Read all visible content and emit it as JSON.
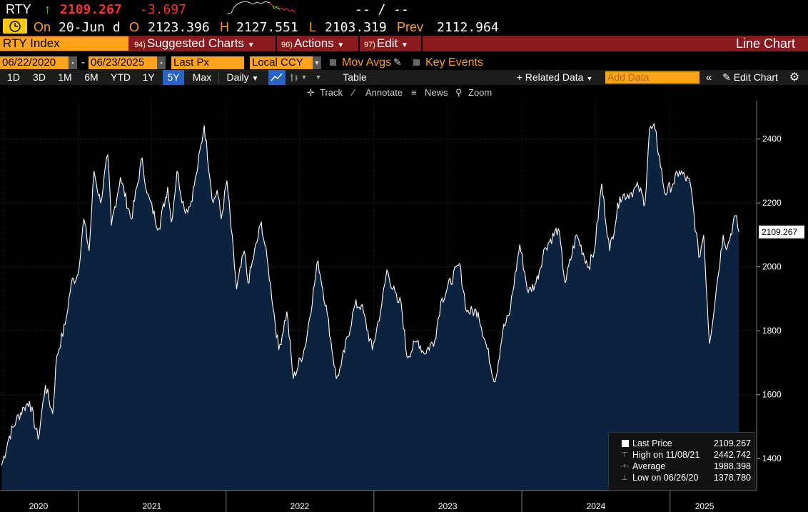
{
  "header": {
    "ticker": "RTY",
    "last": "2109.267",
    "change": "-3.697",
    "quote_placeholder": "-- / --",
    "on_label": "On",
    "date": "20-Jun d",
    "open_label": "O",
    "open": "2123.396",
    "high_label": "H",
    "high": "2127.551",
    "low_label": "L",
    "low": "2103.319",
    "prev_label": "Prev",
    "prev": "2112.964"
  },
  "menubar": {
    "security": "RTY Index",
    "suggested_num": "94)",
    "suggested": "Suggested Charts",
    "actions_num": "96)",
    "actions": "Actions",
    "edit_num": "97)",
    "edit": "Edit",
    "chart_type": "Line Chart"
  },
  "controls": {
    "start_date": "06/22/2020",
    "dash": "-",
    "end_date": "06/23/2025",
    "field": "Last Px",
    "currency": "Local CCY",
    "mov_avgs": "Mov Avgs",
    "key_events": "Key Events"
  },
  "toolbar": {
    "periods": [
      "1D",
      "3D",
      "1M",
      "6M",
      "YTD",
      "1Y",
      "5Y",
      "Max"
    ],
    "selected_period": "5Y",
    "frequency": "Daily",
    "table": "Table",
    "related": "+ Related Data",
    "add_data_placeholder": "Add Data",
    "edit_chart": "Edit Chart"
  },
  "tools": {
    "track": "Track",
    "annotate": "Annotate",
    "news": "News",
    "zoom": "Zoom"
  },
  "legend": {
    "last_label": "Last Price",
    "last_value": "2109.267",
    "high_label": "High on 11/08/21",
    "high_value": "2442.742",
    "avg_label": "Average",
    "avg_value": "1988.398",
    "low_label": "Low on 06/26/20",
    "low_value": "1378.780"
  },
  "colors": {
    "accent": "#ffa31a",
    "menubar": "#8b1a1f",
    "area_fill": "#0c2340",
    "line": "#ffffff",
    "up": "#2ee62e",
    "down": "#ff2e2e"
  },
  "chart_data": {
    "type": "area",
    "ylim": [
      1300,
      2520
    ],
    "y_ticks": [
      1400,
      1600,
      1800,
      2000,
      2200,
      2400
    ],
    "x_tick_labels": [
      "2020",
      "2021",
      "2022",
      "2023",
      "2024",
      "2025"
    ],
    "x_range": [
      "2020-06-22",
      "2025-06-23"
    ],
    "last_value_label": "2109.267",
    "grid": true,
    "series": [
      {
        "points": [
          [
            "2020-06-26",
            1378.78
          ],
          [
            "2020-07-15",
            1470
          ],
          [
            "2020-08-01",
            1520
          ],
          [
            "2020-08-20",
            1560
          ],
          [
            "2020-09-03",
            1580
          ],
          [
            "2020-09-24",
            1460
          ],
          [
            "2020-10-12",
            1630
          ],
          [
            "2020-10-30",
            1540
          ],
          [
            "2020-11-09",
            1720
          ],
          [
            "2020-11-30",
            1820
          ],
          [
            "2020-12-15",
            1950
          ],
          [
            "2020-12-31",
            1975
          ],
          [
            "2021-01-15",
            2150
          ],
          [
            "2021-01-28",
            2050
          ],
          [
            "2021-02-09",
            2300
          ],
          [
            "2021-02-25",
            2200
          ],
          [
            "2021-03-15",
            2350
          ],
          [
            "2021-03-24",
            2130
          ],
          [
            "2021-04-15",
            2280
          ],
          [
            "2021-05-12",
            2150
          ],
          [
            "2021-06-08",
            2340
          ],
          [
            "2021-06-20",
            2230
          ],
          [
            "2021-07-19",
            2120
          ],
          [
            "2021-08-10",
            2250
          ],
          [
            "2021-08-19",
            2140
          ],
          [
            "2021-09-02",
            2300
          ],
          [
            "2021-09-20",
            2180
          ],
          [
            "2021-10-04",
            2190
          ],
          [
            "2021-10-20",
            2290
          ],
          [
            "2021-11-08",
            2442.74
          ],
          [
            "2021-11-30",
            2200
          ],
          [
            "2021-12-10",
            2240
          ],
          [
            "2021-12-20",
            2150
          ],
          [
            "2022-01-03",
            2270
          ],
          [
            "2022-01-27",
            1930
          ],
          [
            "2022-02-15",
            2050
          ],
          [
            "2022-02-24",
            1950
          ],
          [
            "2022-03-29",
            2140
          ],
          [
            "2022-04-15",
            2000
          ],
          [
            "2022-05-11",
            1740
          ],
          [
            "2022-05-31",
            1860
          ],
          [
            "2022-06-16",
            1650
          ],
          [
            "2022-07-15",
            1750
          ],
          [
            "2022-08-16",
            2020
          ],
          [
            "2022-09-08",
            1850
          ],
          [
            "2022-09-30",
            1650
          ],
          [
            "2022-10-12",
            1690
          ],
          [
            "2022-11-15",
            1880
          ],
          [
            "2022-12-01",
            1880
          ],
          [
            "2022-12-28",
            1740
          ],
          [
            "2023-01-20",
            1880
          ],
          [
            "2023-02-02",
            1990
          ],
          [
            "2023-02-28",
            1890
          ],
          [
            "2023-03-09",
            1890
          ],
          [
            "2023-03-23",
            1720
          ],
          [
            "2023-04-20",
            1770
          ],
          [
            "2023-05-04",
            1730
          ],
          [
            "2023-05-31",
            1770
          ],
          [
            "2023-06-15",
            1890
          ],
          [
            "2023-07-31",
            2010
          ],
          [
            "2023-08-18",
            1860
          ],
          [
            "2023-09-15",
            1860
          ],
          [
            "2023-10-27",
            1640
          ],
          [
            "2023-11-15",
            1800
          ],
          [
            "2023-12-01",
            1850
          ],
          [
            "2023-12-27",
            2070
          ],
          [
            "2024-01-17",
            1920
          ],
          [
            "2024-02-05",
            1950
          ],
          [
            "2024-02-27",
            2060
          ],
          [
            "2024-03-31",
            2120
          ],
          [
            "2024-04-17",
            1950
          ],
          [
            "2024-05-15",
            2100
          ],
          [
            "2024-06-14",
            2000
          ],
          [
            "2024-06-28",
            2050
          ],
          [
            "2024-07-16",
            2260
          ],
          [
            "2024-08-05",
            2050
          ],
          [
            "2024-08-30",
            2220
          ],
          [
            "2024-09-24",
            2230
          ],
          [
            "2024-10-15",
            2250
          ],
          [
            "2024-10-31",
            2200
          ],
          [
            "2024-11-11",
            2430
          ],
          [
            "2024-11-25",
            2430
          ],
          [
            "2024-12-19",
            2230
          ],
          [
            "2025-01-08",
            2260
          ],
          [
            "2025-01-24",
            2300
          ],
          [
            "2025-02-20",
            2260
          ],
          [
            "2025-03-13",
            2030
          ],
          [
            "2025-03-25",
            2100
          ],
          [
            "2025-04-08",
            1760
          ],
          [
            "2025-04-25",
            1930
          ],
          [
            "2025-05-12",
            2100
          ],
          [
            "2025-05-22",
            2060
          ],
          [
            "2025-06-11",
            2160
          ],
          [
            "2025-06-20",
            2109.27
          ]
        ]
      }
    ]
  }
}
